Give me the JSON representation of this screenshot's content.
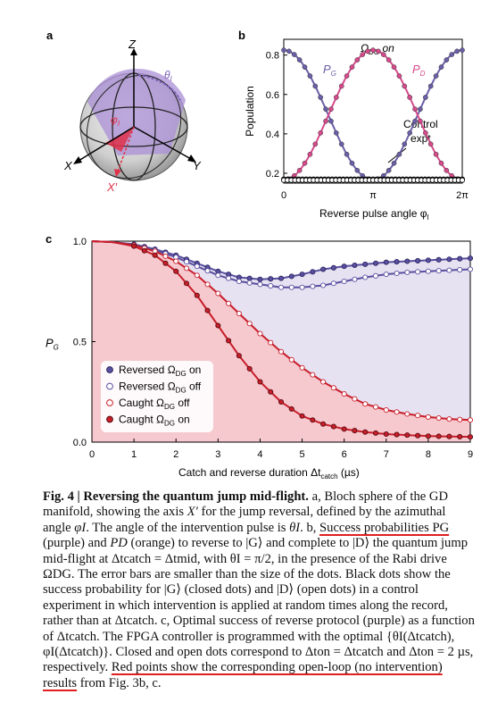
{
  "panel_labels": {
    "a": "a",
    "b": "b",
    "c": "c"
  },
  "bloch": {
    "axis_z": "Z",
    "axis_x": "X",
    "axis_y": "Y",
    "axis_xprime": "X′",
    "theta": "θ",
    "theta_sub": "I",
    "phi": "φ",
    "phi_sub": "I"
  },
  "chart_data": [
    {
      "panel": "b",
      "type": "scatter",
      "title": "",
      "annotation_main": "Ω",
      "annotation_sub": "DG",
      "annotation_suffix": " on",
      "label_pg": "P",
      "label_pg_sub": "G",
      "label_pd": "P",
      "label_pd_sub": "D",
      "control_label_line1": "Control",
      "control_label_line2": "expt",
      "xlabel": "Reverse pulse angle φ",
      "xlabel_sub": "I",
      "ylabel": "Population",
      "xlim": [
        0,
        6.2832
      ],
      "ylim": [
        0.15,
        0.88
      ],
      "xticks": [
        {
          "v": 0,
          "label": "0"
        },
        {
          "v": 3.1416,
          "label": "π"
        },
        {
          "v": 6.2832,
          "label": "2π"
        }
      ],
      "yticks": [
        0.2,
        0.4,
        0.6,
        0.8
      ],
      "colors": {
        "pg": "#6a5fa8",
        "pd": "#d64a8c",
        "control": "#000000"
      },
      "series": [
        {
          "name": "P_G",
          "kind": "sine",
          "mid": 0.495,
          "amp": 0.33,
          "phase": 1.5708
        },
        {
          "name": "P_D",
          "kind": "sine",
          "mid": 0.495,
          "amp": -0.33,
          "phase": 1.5708
        },
        {
          "name": "Control expt (closed)",
          "kind": "flat",
          "y": 0.17
        },
        {
          "name": "Control expt (open)",
          "kind": "flat",
          "y": 0.165
        }
      ]
    },
    {
      "panel": "c",
      "type": "line",
      "title": "",
      "ylabel": "P",
      "ylabel_sub": "G",
      "xlabel": "Catch and reverse duration Δt",
      "xlabel_sub": "catch",
      "xlabel_unit": " (µs)",
      "xlim": [
        0,
        9
      ],
      "ylim": [
        0,
        1
      ],
      "xticks": [
        0,
        1,
        2,
        3,
        4,
        5,
        6,
        7,
        8,
        9
      ],
      "yticks": [
        {
          "v": 0,
          "label": "0.0"
        },
        {
          "v": 0.5,
          "label": "0.5"
        },
        {
          "v": 1,
          "label": "1.0"
        }
      ],
      "colors": {
        "reversed": "#5a50a0",
        "caught": "#c81e2a",
        "fill_caught": "#f6c9cf",
        "fill_between": "#e7e2f1"
      },
      "legend": [
        {
          "label": "Reversed Ω",
          "sub": "DG",
          "suffix": " on",
          "marker": "reversed-on"
        },
        {
          "label": "Reversed Ω",
          "sub": "DG",
          "suffix": " off",
          "marker": "reversed-off"
        },
        {
          "label": "Caught   Ω",
          "sub": "DG",
          "suffix": " off",
          "marker": "caught-off"
        },
        {
          "label": "Caught   Ω",
          "sub": "DG",
          "suffix": " on",
          "marker": "caught-on"
        }
      ],
      "series": [
        {
          "name": "Reversed ΩDG on",
          "x": [
            0,
            0.5,
            1,
            1.5,
            2,
            2.5,
            3,
            3.5,
            4,
            4.5,
            5,
            5.5,
            6,
            6.5,
            7,
            7.5,
            8,
            8.5,
            9
          ],
          "y": [
            1.0,
            0.995,
            0.985,
            0.96,
            0.93,
            0.89,
            0.85,
            0.82,
            0.81,
            0.815,
            0.835,
            0.86,
            0.875,
            0.885,
            0.895,
            0.9,
            0.905,
            0.91,
            0.915
          ]
        },
        {
          "name": "Reversed ΩDG off",
          "x": [
            0,
            0.5,
            1,
            1.5,
            2,
            2.5,
            3,
            3.5,
            4,
            4.5,
            5,
            5.5,
            6,
            6.5,
            7,
            7.5,
            8,
            8.5,
            9
          ],
          "y": [
            1.0,
            0.995,
            0.98,
            0.955,
            0.92,
            0.875,
            0.83,
            0.8,
            0.785,
            0.77,
            0.77,
            0.78,
            0.8,
            0.82,
            0.835,
            0.845,
            0.85,
            0.855,
            0.86
          ]
        },
        {
          "name": "Caught ΩDG off",
          "x": [
            0,
            0.5,
            1,
            1.5,
            2,
            2.5,
            3,
            3.5,
            4,
            4.5,
            5,
            5.5,
            6,
            6.5,
            7,
            7.5,
            8,
            8.5,
            9
          ],
          "y": [
            1.0,
            0.995,
            0.98,
            0.95,
            0.9,
            0.83,
            0.74,
            0.64,
            0.54,
            0.45,
            0.37,
            0.3,
            0.24,
            0.19,
            0.16,
            0.14,
            0.125,
            0.115,
            0.11
          ]
        },
        {
          "name": "Caught ΩDG on",
          "x": [
            0,
            0.5,
            1,
            1.5,
            2,
            2.5,
            3,
            3.5,
            4,
            4.5,
            5,
            5.5,
            6,
            6.5,
            7,
            7.5,
            8,
            8.5,
            9
          ],
          "y": [
            1.0,
            0.995,
            0.975,
            0.93,
            0.85,
            0.73,
            0.58,
            0.43,
            0.3,
            0.2,
            0.13,
            0.09,
            0.065,
            0.05,
            0.04,
            0.035,
            0.03,
            0.028,
            0.026
          ]
        }
      ]
    }
  ],
  "caption": {
    "fig": "Fig. 4 | Reversing the quantum jump mid-flight.",
    "part_a": " a, Bloch sphere of the GD manifold, showing the axis ",
    "xprime": "X′",
    "part_a2": " for the jump reversal, defined by the azimuthal angle ",
    "phi": "φI",
    "part_a3": ". The angle of the intervention pulse is ",
    "theta": "θI",
    "part_b_label": ". b, ",
    "success": "Success probabilities PG",
    "part_b": " (purple) and ",
    "pd": "PD",
    "part_b2": " (orange) to reverse to |G⟩ and complete to |D⟩ the quantum jump mid-flight at Δtcatch = Δtmid, with θI = π/2, in the presence of the Rabi drive ΩDG. The error bars are smaller than the size of the dots. Black dots show the success probability for |G⟩ (closed dots) and |D⟩ (open dots) in a control experiment in which intervention is applied at random times along the record, rather than at Δtcatch. c, Optimal success of reverse protocol (purple) as a function of Δtcatch. The FPGA controller is programmed with the optimal {θI(Δtcatch), φI(Δtcatch)}. Closed and open dots correspond to Δton = Δtcatch and Δton = 2 µs, respectively. ",
    "red": "Red points show the corresponding open-loop (no intervention) results",
    "part_end": " from Fig. 3b, c."
  }
}
